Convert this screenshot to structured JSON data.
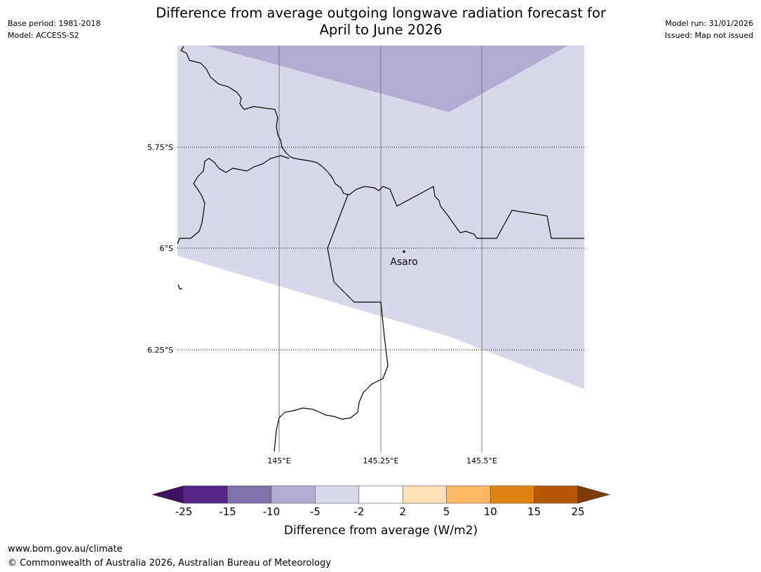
{
  "header": {
    "title_line1": "Difference from average outgoing longwave radiation forecast for",
    "title_line2": "April to June 2026",
    "base_period": "Base period: 1981-2018",
    "model": "Model: ACCESS-S2",
    "model_run": "Model run: 31/01/2026",
    "issued": "Issued: Map not issued"
  },
  "map": {
    "lat_labels": [
      "5.75°S",
      "6°S",
      "6.25°S"
    ],
    "lon_labels": [
      "145°E",
      "145.25°E",
      "145.5°E"
    ],
    "place": "Asaro",
    "colors": {
      "band_-10_-5": "#b2abd2",
      "band_-5_-2": "#d8d8ea"
    }
  },
  "colorbar": {
    "ticks": [
      "-25",
      "-15",
      "-10",
      "-5",
      "-2",
      "2",
      "5",
      "10",
      "15",
      "25"
    ],
    "colors": [
      "#3f1161",
      "#542788",
      "#8073ac",
      "#b2abd2",
      "#d8daeb",
      "#ffffff",
      "#fee0b6",
      "#fdb863",
      "#e08214",
      "#b35806",
      "#7f3b08"
    ],
    "label": "Difference from average (W/m2)"
  },
  "footer": {
    "url": "www.bom.gov.au/climate",
    "copyright": "© Commonwealth of Australia 2026, Australian Bureau of Meteorology"
  }
}
